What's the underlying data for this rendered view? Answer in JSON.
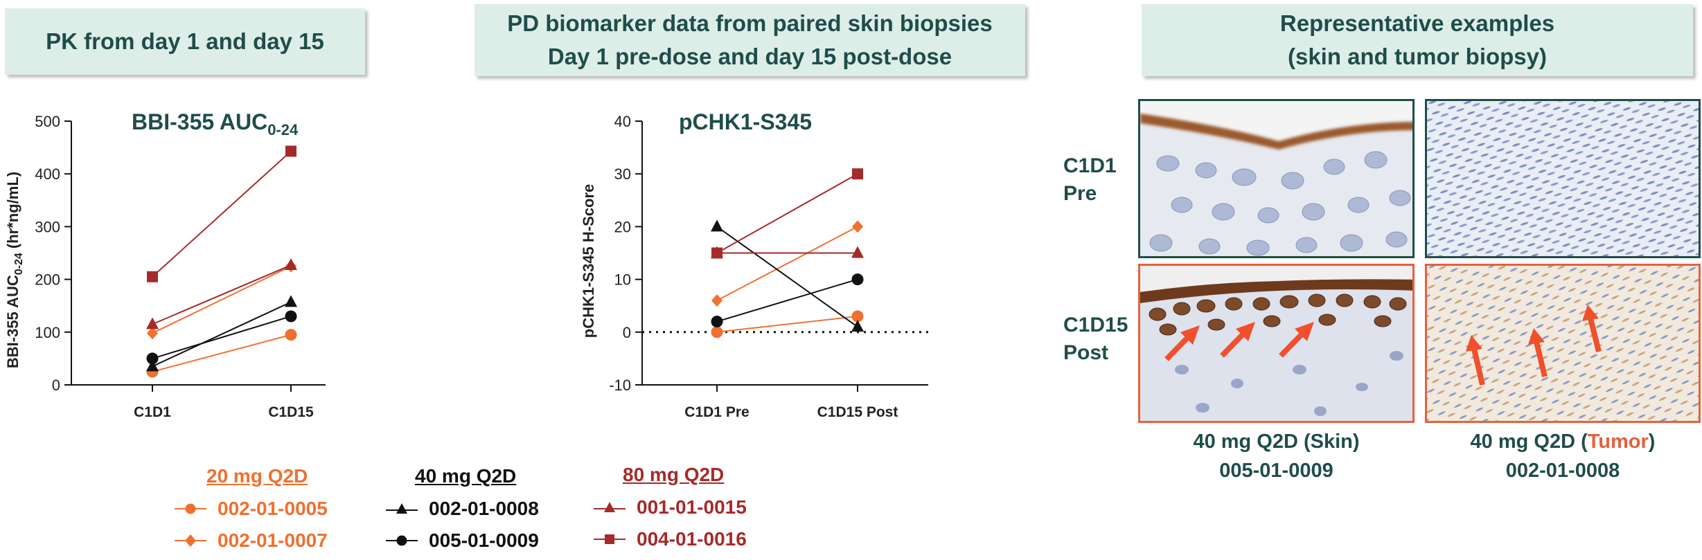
{
  "headers": {
    "pk": [
      "PK from day 1 and day 15"
    ],
    "pd": [
      "PD biomarker data from paired skin biopsies",
      "Day 1 pre-dose and day 15 post-dose"
    ],
    "rep": [
      "Representative examples",
      "(skin and tumor biopsy)"
    ]
  },
  "chart_data": [
    {
      "type": "line",
      "title": "BBI-355 AUC0-24",
      "title_main": "BBI-355 AUC",
      "title_sub": "0-24",
      "ylabel_main": "BBI-355 AUC",
      "ylabel_sub": "0-24",
      "ylabel_unit": " (hr*ng/mL)",
      "categories": [
        "C1D1",
        "C1D15"
      ],
      "ylim": [
        0,
        500
      ],
      "yticks": [
        0,
        100,
        200,
        300,
        400,
        500
      ],
      "series": [
        {
          "name": "002-01-0005",
          "dose": "20 mg Q2D",
          "marker": "circle",
          "color": "#f07030",
          "values": [
            25,
            95
          ]
        },
        {
          "name": "002-01-0007",
          "dose": "20 mg Q2D",
          "marker": "diamond",
          "color": "#f07030",
          "values": [
            98,
            225
          ]
        },
        {
          "name": "002-01-0008",
          "dose": "40 mg Q2D",
          "marker": "triangle",
          "color": "#111111",
          "values": [
            35,
            157
          ]
        },
        {
          "name": "005-01-0009",
          "dose": "40 mg Q2D",
          "marker": "circle",
          "color": "#111111",
          "values": [
            50,
            130
          ]
        },
        {
          "name": "001-01-0015",
          "dose": "80 mg Q2D",
          "marker": "triangle",
          "color": "#a52a2a",
          "values": [
            115,
            227
          ]
        },
        {
          "name": "004-01-0016",
          "dose": "80 mg Q2D",
          "marker": "square",
          "color": "#a52a2a",
          "values": [
            205,
            443
          ]
        }
      ]
    },
    {
      "type": "line",
      "title": "pCHK1-S345",
      "ylabel": "pCHK1-S345 H-Score",
      "categories": [
        "C1D1 Pre",
        "C1D15 Post"
      ],
      "ylim": [
        -10,
        40
      ],
      "yticks": [
        -10,
        0,
        10,
        20,
        30,
        40
      ],
      "reference_line": 0,
      "series": [
        {
          "name": "002-01-0005",
          "dose": "20 mg Q2D",
          "marker": "circle",
          "color": "#f07030",
          "values": [
            0,
            3
          ]
        },
        {
          "name": "002-01-0007",
          "dose": "20 mg Q2D",
          "marker": "diamond",
          "color": "#f07030",
          "values": [
            6,
            20
          ]
        },
        {
          "name": "002-01-0008",
          "dose": "40 mg Q2D",
          "marker": "triangle",
          "color": "#111111",
          "values": [
            20,
            1
          ]
        },
        {
          "name": "005-01-0009",
          "dose": "40 mg Q2D",
          "marker": "circle",
          "color": "#111111",
          "values": [
            2,
            10
          ]
        },
        {
          "name": "001-01-0015",
          "dose": "80 mg Q2D",
          "marker": "triangle",
          "color": "#a52a2a",
          "values": [
            15,
            15
          ]
        },
        {
          "name": "004-01-0016",
          "dose": "80 mg Q2D",
          "marker": "square",
          "color": "#a52a2a",
          "values": [
            15,
            30
          ]
        }
      ]
    }
  ],
  "legend": {
    "groups": [
      {
        "title": "20 mg Q2D",
        "color": "#f07030",
        "items": [
          {
            "label": "002-01-0005",
            "marker": "circle"
          },
          {
            "label": "002-01-0007",
            "marker": "diamond"
          }
        ]
      },
      {
        "title": "40 mg Q2D",
        "color": "#111111",
        "items": [
          {
            "label": "002-01-0008",
            "marker": "triangle"
          },
          {
            "label": "005-01-0009",
            "marker": "circle"
          }
        ]
      },
      {
        "title": "80 mg Q2D",
        "color": "#a52a2a",
        "items": [
          {
            "label": "001-01-0015",
            "marker": "triangle"
          },
          {
            "label": "004-01-0016",
            "marker": "square"
          }
        ]
      }
    ]
  },
  "examples": {
    "row_labels": [
      [
        "C1D1",
        "Pre"
      ],
      [
        "C1D15",
        "Post"
      ]
    ],
    "captions": [
      {
        "line1_a": "40 mg Q2D (Skin)",
        "line1_b": "",
        "line1_c": "",
        "line2": "005-01-0009"
      },
      {
        "line1_a": "40 mg Q2D (",
        "line1_b": "Tumor",
        "line1_c": ")",
        "line2": "002-01-0008"
      }
    ],
    "border_colors": {
      "pre": "#1f4d4a",
      "post": "#e8603c"
    }
  }
}
